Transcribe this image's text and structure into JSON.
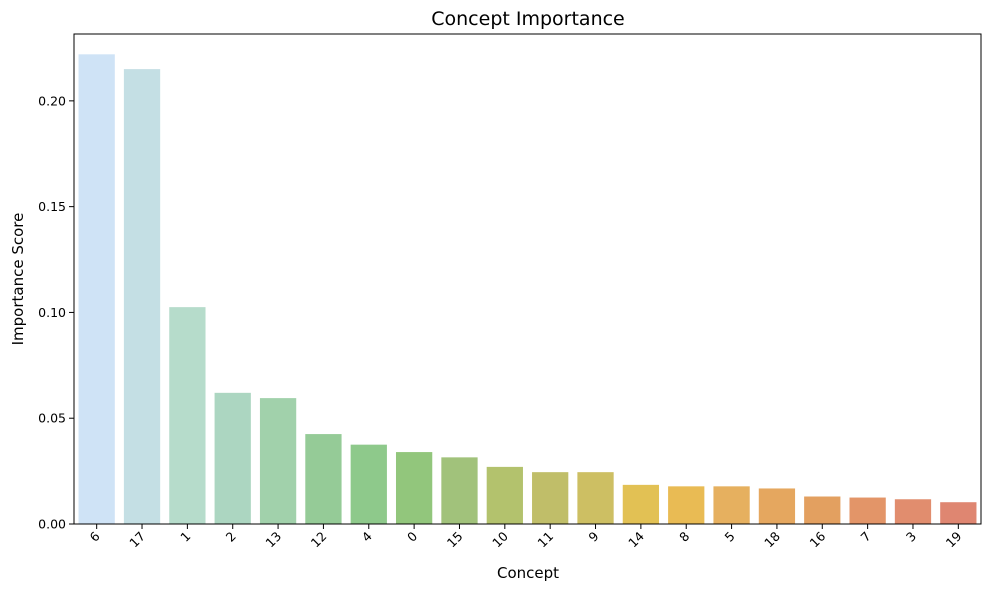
{
  "chart_data": {
    "type": "bar",
    "title": "Concept Importance",
    "xlabel": "Concept",
    "ylabel": "Importance Score",
    "ylim": [
      0,
      0.2316
    ],
    "yticks": [
      0.0,
      0.05,
      0.1,
      0.15,
      0.2
    ],
    "ytick_labels": [
      "0.00",
      "0.05",
      "0.10",
      "0.15",
      "0.20"
    ],
    "grid": false,
    "categories": [
      "6",
      "17",
      "1",
      "2",
      "13",
      "12",
      "4",
      "0",
      "15",
      "10",
      "11",
      "9",
      "14",
      "8",
      "5",
      "18",
      "16",
      "7",
      "3",
      "19"
    ],
    "values": [
      0.222,
      0.215,
      0.1025,
      0.062,
      0.0595,
      0.0425,
      0.0375,
      0.034,
      0.0315,
      0.027,
      0.0245,
      0.0245,
      0.0185,
      0.0178,
      0.0178,
      0.0168,
      0.013,
      0.0125,
      0.0117,
      0.0103
    ],
    "colors": [
      "#cfe3f6",
      "#c4dfe4",
      "#b6dccb",
      "#acd6c1",
      "#a1d1ab",
      "#95cb97",
      "#8ec98b",
      "#92c67c",
      "#a1c27b",
      "#b3c26d",
      "#c0be69",
      "#cdbf63",
      "#e2c154",
      "#e9bb54",
      "#e6b05f",
      "#e5a75f",
      "#e3a060",
      "#e39568",
      "#e18d6e",
      "#df8671"
    ]
  }
}
